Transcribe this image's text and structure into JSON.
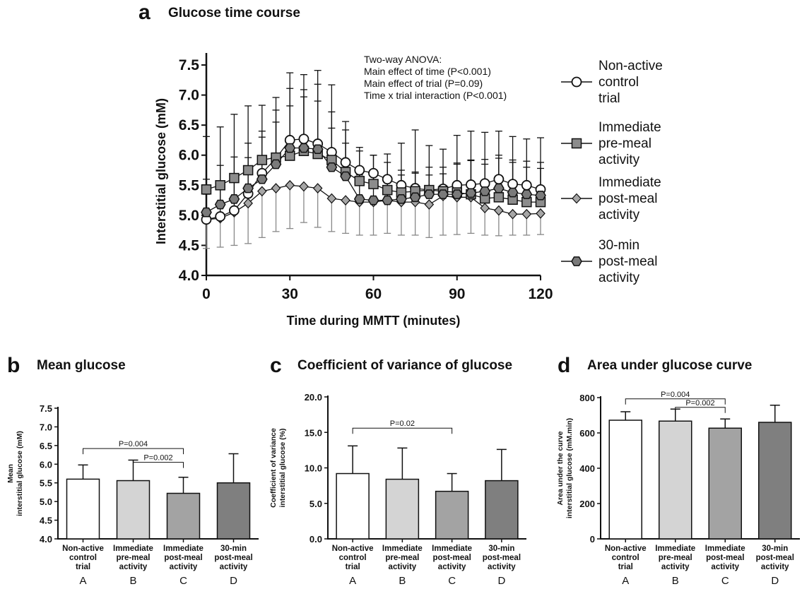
{
  "panel_a": {
    "letter": "a",
    "title": "Glucose time course",
    "anova": [
      "Two-way ANOVA:",
      "Main effect of time (P<0.001)",
      "Main effect of trial (P=0.09)",
      "Time x trial interaction (P<0.001)"
    ],
    "legend": [
      [
        "Non-active",
        "control",
        "trial"
      ],
      [
        "Immediate",
        "pre-meal",
        "activity"
      ],
      [
        "Immediate",
        "post-meal",
        "activity"
      ],
      [
        "30-min",
        "post-meal",
        "activity"
      ]
    ]
  },
  "panel_b": {
    "letter": "b",
    "title": "Mean glucose"
  },
  "panel_c": {
    "letter": "c",
    "title": "Coefficient of variance of glucose"
  },
  "panel_d": {
    "letter": "d",
    "title": "Area under glucose curve"
  },
  "chart_data": [
    {
      "type": "line",
      "title": "Glucose time course",
      "xlabel": "Time during MMTT (minutes)",
      "ylabel": "Interstitial glucose (mM)",
      "xlim": [
        0,
        120
      ],
      "ylim": [
        4.0,
        7.5
      ],
      "xticks": [
        "0",
        "30",
        "60",
        "90",
        "120"
      ],
      "yticks": [
        "4.0",
        "4.5",
        "5.0",
        "5.5",
        "6.0",
        "6.5",
        "7.0",
        "7.5"
      ],
      "x": [
        0,
        5,
        10,
        15,
        20,
        25,
        30,
        35,
        40,
        45,
        50,
        55,
        60,
        65,
        70,
        75,
        80,
        85,
        90,
        95,
        100,
        105,
        110,
        115,
        120
      ],
      "series": [
        {
          "name": "Non-active control trial",
          "marker": "circle",
          "fill": "#ffffff",
          "values": [
            4.93,
            4.98,
            5.08,
            5.36,
            5.7,
            5.95,
            6.25,
            6.27,
            6.19,
            6.05,
            5.88,
            5.75,
            5.7,
            5.6,
            5.5,
            5.45,
            5.42,
            5.44,
            5.5,
            5.51,
            5.53,
            5.6,
            5.52,
            5.5,
            5.43
          ],
          "errors": [
            0.42,
            0.45,
            0.5,
            0.6,
            0.7,
            0.8,
            1.12,
            1.07,
            1.22,
            1.12,
            0.68,
            0.38,
            0.3,
            0.28,
            0.25,
            0.25,
            0.25,
            0.25,
            0.35,
            0.4,
            0.4,
            0.4,
            0.4,
            0.4,
            0.45
          ]
        },
        {
          "name": "Immediate pre-meal activity",
          "marker": "square",
          "fill": "#8c8c8c",
          "values": [
            5.43,
            5.5,
            5.62,
            5.75,
            5.92,
            5.96,
            5.99,
            6.07,
            6.02,
            5.92,
            5.72,
            5.57,
            5.52,
            5.42,
            5.38,
            5.4,
            5.42,
            5.4,
            5.38,
            5.35,
            5.28,
            5.3,
            5.26,
            5.22,
            5.22
          ],
          "errors": [
            0.88,
            0.97,
            1.06,
            1.07,
            0.91,
            1.0,
            1.12,
            1.02,
            1.16,
            0.8,
            0.7,
            0.5,
            0.48,
            0.6,
            0.82,
            1.02,
            0.74,
            0.7,
            0.95,
            1.05,
            1.1,
            1.1,
            1.05,
            1.05,
            1.07
          ]
        },
        {
          "name": "Immediate post-meal activity",
          "marker": "diamond",
          "fill": "#a6a6a6",
          "values": [
            4.93,
            4.95,
            5.05,
            5.2,
            5.4,
            5.45,
            5.5,
            5.48,
            5.45,
            5.28,
            5.25,
            5.22,
            5.22,
            5.25,
            5.22,
            5.22,
            5.18,
            5.32,
            5.3,
            5.3,
            5.12,
            5.08,
            5.02,
            5.02,
            5.03
          ],
          "errors": [
            0.48,
            0.48,
            0.55,
            0.67,
            0.77,
            0.72,
            0.72,
            0.6,
            0.65,
            0.55,
            0.55,
            0.55,
            0.55,
            0.55,
            0.55,
            0.55,
            0.55,
            0.65,
            0.62,
            0.6,
            0.45,
            0.42,
            0.35,
            0.35,
            0.35
          ]
        },
        {
          "name": "30-min post-meal activity",
          "marker": "hexagon",
          "fill": "#7a7a7a",
          "values": [
            5.05,
            5.18,
            5.27,
            5.45,
            5.6,
            5.85,
            6.12,
            6.12,
            6.1,
            5.8,
            5.65,
            5.27,
            5.25,
            5.25,
            5.27,
            5.3,
            5.35,
            5.35,
            5.35,
            5.37,
            5.4,
            5.45,
            5.38,
            5.35,
            5.33
          ],
          "errors": [
            0.55,
            0.65,
            0.7,
            0.75,
            0.7,
            0.7,
            0.7,
            0.85,
            0.8,
            0.65,
            0.55,
            0.4,
            0.4,
            0.4,
            0.4,
            0.42,
            0.45,
            0.45,
            0.52,
            0.55,
            0.45,
            0.5,
            0.5,
            0.45,
            0.45
          ]
        }
      ]
    },
    {
      "type": "bar",
      "title": "Mean glucose",
      "ylabel": [
        "Mean",
        "interstitial glucose (mM)"
      ],
      "ylim": [
        4.0,
        7.5
      ],
      "yticks": [
        "4.0",
        "4.5",
        "5.0",
        "5.5",
        "6.0",
        "6.5",
        "7.0",
        "7.5"
      ],
      "categories": [
        [
          "Non-active",
          "control",
          "trial"
        ],
        [
          "Immediate",
          "pre-meal",
          "activity"
        ],
        [
          "Immediate",
          "post-meal",
          "activity"
        ],
        [
          "30-min",
          "post-meal",
          "activity"
        ]
      ],
      "category_letters": [
        "A",
        "B",
        "C",
        "D"
      ],
      "values": [
        5.6,
        5.56,
        5.22,
        5.5
      ],
      "errors": [
        0.38,
        0.55,
        0.43,
        0.78
      ],
      "colors": [
        "#ffffff",
        "#d4d4d4",
        "#a3a3a3",
        "#7f7f7f"
      ],
      "comparisons": [
        {
          "from": 0,
          "to": 2,
          "label": "P=0.004",
          "y": 6.42
        },
        {
          "from": 1,
          "to": 2,
          "label": "P=0.002",
          "y": 6.05
        }
      ]
    },
    {
      "type": "bar",
      "title": "Coefficient of variance of glucose",
      "ylabel": [
        "Coefficient of variance",
        "interstitial glucose (%)"
      ],
      "ylim": [
        0,
        20
      ],
      "yticks": [
        "0.0",
        "5.0",
        "10.0",
        "15.0",
        "20.0"
      ],
      "categories": [
        [
          "Non-active",
          "control",
          "trial"
        ],
        [
          "Immediate",
          "pre-meal",
          "activity"
        ],
        [
          "Immediate",
          "post-meal",
          "activity"
        ],
        [
          "30-min",
          "post-meal",
          "activity"
        ]
      ],
      "category_letters": [
        "A",
        "B",
        "C",
        "D"
      ],
      "values": [
        9.2,
        8.4,
        6.7,
        8.2
      ],
      "errors": [
        3.9,
        4.4,
        2.5,
        4.4
      ],
      "colors": [
        "#ffffff",
        "#d4d4d4",
        "#a3a3a3",
        "#7f7f7f"
      ],
      "comparisons": [
        {
          "from": 0,
          "to": 2,
          "label": "P=0.02",
          "y": 15.6
        }
      ]
    },
    {
      "type": "bar",
      "title": "Area under glucose curve",
      "ylabel": [
        "Area under the curve",
        "interstitial glucose (mM.min)"
      ],
      "ylim": [
        0,
        800
      ],
      "yticks": [
        "0",
        "200",
        "400",
        "600",
        "800"
      ],
      "categories": [
        [
          "Non-active",
          "control",
          "trial"
        ],
        [
          "Immediate",
          "pre-meal",
          "activity"
        ],
        [
          "Immediate",
          "post-meal",
          "activity"
        ],
        [
          "30-min",
          "post-meal",
          "activity"
        ]
      ],
      "category_letters": [
        "A",
        "B",
        "C",
        "D"
      ],
      "values": [
        672,
        667,
        627,
        660
      ],
      "errors": [
        48,
        68,
        52,
        97
      ],
      "colors": [
        "#ffffff",
        "#d4d4d4",
        "#a3a3a3",
        "#7f7f7f"
      ],
      "comparisons": [
        {
          "from": 0,
          "to": 2,
          "label": "P=0.004",
          "y": 793
        },
        {
          "from": 1,
          "to": 2,
          "label": "P=0.002",
          "y": 745
        }
      ]
    }
  ]
}
